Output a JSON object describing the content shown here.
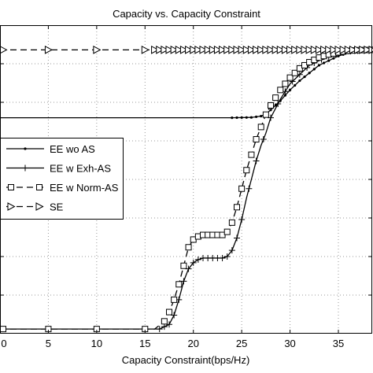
{
  "chart_data": {
    "type": "line",
    "title": "Capacity vs. Capacity Constraint",
    "xlabel": "Capacity Constraint(bps/Hz)",
    "ylabel": "",
    "xlim": [
      0,
      38.5
    ],
    "ylim": [
      0,
      1
    ],
    "grid": "dotted",
    "legend_position": "left",
    "x_ticks": [
      0,
      5,
      10,
      15,
      20,
      25,
      30,
      35
    ],
    "x_tick_labels": [
      "0",
      "5",
      "10",
      "15",
      "20",
      "25",
      "30",
      "35"
    ],
    "y_tick_count": 7,
    "colors": {
      "line": "#000000",
      "grid": "#999999",
      "axes": "#000000"
    },
    "series": [
      {
        "name": "EE wo AS",
        "marker": "dot",
        "line_style": "solid",
        "x": [
          0,
          5,
          10,
          15,
          20,
          24,
          26,
          27,
          27.5,
          28,
          28.5,
          29,
          30,
          31,
          32,
          33,
          34,
          35,
          36,
          37,
          38.5
        ],
        "y": [
          0.7,
          0.7,
          0.7,
          0.7,
          0.7,
          0.7,
          0.701,
          0.705,
          0.712,
          0.725,
          0.74,
          0.755,
          0.79,
          0.82,
          0.845,
          0.87,
          0.885,
          0.9,
          0.91,
          0.915,
          0.92
        ]
      },
      {
        "name": "EE w Exh-AS",
        "marker": "plus",
        "line_style": "solid",
        "x": [
          0,
          16.5,
          17.5,
          18,
          18.5,
          19,
          19.5,
          20,
          20.5,
          21,
          22,
          23,
          23.5,
          24,
          24.5,
          25,
          25.5,
          26,
          26.5,
          27,
          27.5,
          28,
          29,
          30,
          32,
          34,
          36,
          38.5
        ],
        "y": [
          0.015,
          0.015,
          0.03,
          0.06,
          0.11,
          0.17,
          0.21,
          0.23,
          0.24,
          0.245,
          0.245,
          0.245,
          0.25,
          0.27,
          0.31,
          0.37,
          0.44,
          0.5,
          0.56,
          0.61,
          0.65,
          0.7,
          0.76,
          0.81,
          0.87,
          0.9,
          0.915,
          0.92
        ]
      },
      {
        "name": "EE w Norm-AS",
        "marker": "square",
        "line_style": "dashed",
        "x": [
          0,
          5,
          10,
          15,
          16,
          17,
          17.5,
          18,
          18.5,
          19,
          19.5,
          20,
          20.5,
          21,
          22,
          23,
          23.5,
          24,
          24.5,
          25,
          25.5,
          26,
          26.5,
          27,
          27.5,
          28,
          29,
          30,
          31,
          32,
          33,
          34,
          35,
          36,
          37,
          38.5
        ],
        "y": [
          0.015,
          0.015,
          0.015,
          0.015,
          0.015,
          0.04,
          0.07,
          0.11,
          0.16,
          0.22,
          0.28,
          0.305,
          0.315,
          0.32,
          0.32,
          0.32,
          0.33,
          0.36,
          0.41,
          0.47,
          0.53,
          0.58,
          0.63,
          0.67,
          0.71,
          0.74,
          0.79,
          0.83,
          0.86,
          0.88,
          0.895,
          0.905,
          0.912,
          0.917,
          0.919,
          0.92
        ]
      },
      {
        "name": "SE",
        "marker": "triangle-right",
        "line_style": "dashed",
        "x": [
          0,
          5,
          10,
          15,
          20,
          25,
          30,
          35,
          38.5
        ],
        "y": [
          0.92,
          0.92,
          0.92,
          0.92,
          0.92,
          0.92,
          0.92,
          0.92,
          0.92
        ]
      }
    ]
  }
}
